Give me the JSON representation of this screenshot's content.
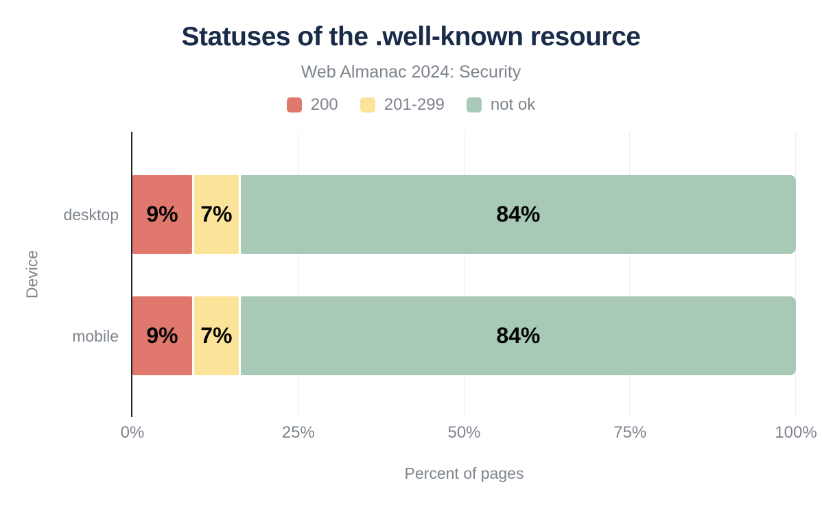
{
  "chart_data": {
    "type": "bar",
    "orientation": "horizontal",
    "stacked": true,
    "title": "Statuses of the .well-known resource",
    "subtitle": "Web Almanac 2024: Security",
    "categories": [
      "desktop",
      "mobile"
    ],
    "series": [
      {
        "name": "200",
        "color": "#e0786e",
        "values": [
          9,
          9
        ],
        "labels": [
          "9%",
          "9%"
        ]
      },
      {
        "name": "201-299",
        "color": "#fce39a",
        "values": [
          7,
          7
        ],
        "labels": [
          "7%",
          "7%"
        ]
      },
      {
        "name": "not ok",
        "color": "#a7c9b6",
        "values": [
          84,
          84
        ],
        "labels": [
          "84%",
          "84%"
        ]
      }
    ],
    "value_suffix": "%",
    "xlabel": "Percent of pages",
    "ylabel": "Device",
    "xlim": [
      0,
      100
    ],
    "xticks": [
      {
        "label": "0%",
        "value": 0
      },
      {
        "label": "25%",
        "value": 25
      },
      {
        "label": "50%",
        "value": 50
      },
      {
        "label": "75%",
        "value": 75
      },
      {
        "label": "100%",
        "value": 100
      }
    ],
    "legend_position": "top",
    "grid": "vertical",
    "colors": {
      "title": "#1a2b49",
      "muted_text": "#7d848c",
      "bar_label": "#050505",
      "axis_line": "#26262b",
      "grid_line": "#ebedee",
      "background": "#ffffff"
    }
  }
}
